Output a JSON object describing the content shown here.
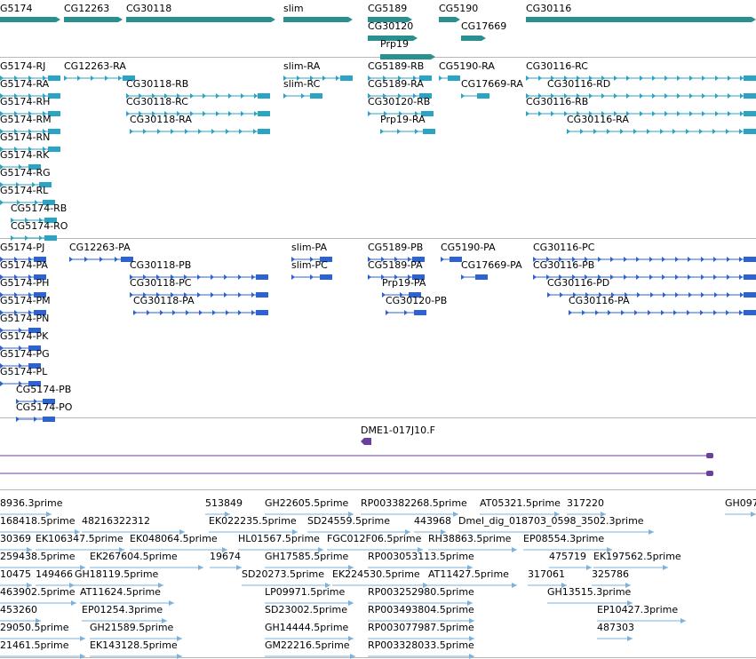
{
  "colors": {
    "gene": "#2a8f8f",
    "transcript": "#2ba3c3",
    "cds": "#2d62d4",
    "est_clone": "#6b3f9e",
    "est": "#7db2dd",
    "separator": "#b8b8b8"
  },
  "tracks": {
    "gene_span": {
      "color_key": "gene",
      "features": [
        {
          "label": "G5174"
        },
        {
          "label": "CG12263"
        },
        {
          "label": "CG30118"
        },
        {
          "label": "slim"
        },
        {
          "label": "CG5189"
        },
        {
          "label": "CG5190"
        },
        {
          "label": "CG30116"
        },
        {
          "label": "CG30120"
        },
        {
          "label": "CG17669"
        },
        {
          "label": "Prp19"
        }
      ]
    },
    "mrna": {
      "color_key": "transcript",
      "features": [
        {
          "label": "G5174-RJ"
        },
        {
          "label": "CG12263-RA"
        },
        {
          "label": "slim-RA"
        },
        {
          "label": "CG5189-RB"
        },
        {
          "label": "CG5190-RA"
        },
        {
          "label": "CG30116-RC"
        },
        {
          "label": "G5174-RA"
        },
        {
          "label": "CG30118-RB"
        },
        {
          "label": "slim-RC"
        },
        {
          "label": "CG5189-RA"
        },
        {
          "label": "CG17669-RA"
        },
        {
          "label": "CG30116-RD"
        },
        {
          "label": "G5174-RH"
        },
        {
          "label": "CG30118-RC"
        },
        {
          "label": "CG30120-RB"
        },
        {
          "label": "CG30116-RB"
        },
        {
          "label": "G5174-RM"
        },
        {
          "label": "CG30118-RA"
        },
        {
          "label": "Prp19-RA"
        },
        {
          "label": "CG30116-RA"
        },
        {
          "label": "G5174-RN"
        },
        {
          "label": "G5174-RK"
        },
        {
          "label": "G5174-RG"
        },
        {
          "label": "G5174-RL"
        },
        {
          "label": "CG5174-RB"
        },
        {
          "label": "CG5174-RO"
        }
      ]
    },
    "cds": {
      "color_key": "cds",
      "features": [
        {
          "label": "G5174-PJ"
        },
        {
          "label": "CG12263-PA"
        },
        {
          "label": "slim-PA"
        },
        {
          "label": "CG5189-PB"
        },
        {
          "label": "CG5190-PA"
        },
        {
          "label": "CG30116-PC"
        },
        {
          "label": "G5174-PA"
        },
        {
          "label": "CG30118-PB"
        },
        {
          "label": "slim-PC"
        },
        {
          "label": "CG5189-PA"
        },
        {
          "label": "CG17669-PA"
        },
        {
          "label": "CG30116-PB"
        },
        {
          "label": "G5174-PH"
        },
        {
          "label": "CG30118-PC"
        },
        {
          "label": "Prp19-PA"
        },
        {
          "label": "CG30116-PD"
        },
        {
          "label": "G5174-PM"
        },
        {
          "label": "CG30118-PA"
        },
        {
          "label": "CG30120-PB"
        },
        {
          "label": "CG30116-PA"
        },
        {
          "label": "G5174-PN"
        },
        {
          "label": "G5174-PK"
        },
        {
          "label": "G5174-PG"
        },
        {
          "label": "G5174-PL"
        },
        {
          "label": "CG5174-PB"
        },
        {
          "label": "CG5174-PO"
        }
      ]
    },
    "clone": {
      "color_key": "est_clone",
      "features": [
        {
          "label": "DME1-017J10.F"
        }
      ]
    },
    "est": {
      "color_key": "est",
      "features": [
        {
          "label": "8936.3prime"
        },
        {
          "label": "513849"
        },
        {
          "label": "GH22605.5prime"
        },
        {
          "label": "RP003382268.5prime"
        },
        {
          "label": "AT05321.5prime"
        },
        {
          "label": "317220"
        },
        {
          "label": "GH097"
        },
        {
          "label": "168418.5prime"
        },
        {
          "label": "48216322312"
        },
        {
          "label": "EK022235.5prime"
        },
        {
          "label": "SD24559.5prime"
        },
        {
          "label": "443968"
        },
        {
          "label": "Dmel_dig_018703_0598_3502.3prime"
        },
        {
          "label": "30369"
        },
        {
          "label": "EK106347.5prime"
        },
        {
          "label": "EK048064.5prime"
        },
        {
          "label": "HL01567.5prime"
        },
        {
          "label": "FGC012F06.5prime"
        },
        {
          "label": "RH38863.5prime"
        },
        {
          "label": "EP08554.3prime"
        },
        {
          "label": "259438.5prime"
        },
        {
          "label": "EK267604.5prime"
        },
        {
          "label": "19674"
        },
        {
          "label": "GH17585.5prime"
        },
        {
          "label": "RP003053113.5prime"
        },
        {
          "label": "475719"
        },
        {
          "label": "EK197562.5prime"
        },
        {
          "label": "10475"
        },
        {
          "label": "149466"
        },
        {
          "label": "GH18119.5prime"
        },
        {
          "label": "SD20273.5prime"
        },
        {
          "label": "EK224530.5prime"
        },
        {
          "label": "AT11427.5prime"
        },
        {
          "label": "317061"
        },
        {
          "label": "325786"
        },
        {
          "label": "463902.5prime"
        },
        {
          "label": "AT11624.5prime"
        },
        {
          "label": "LP09971.5prime"
        },
        {
          "label": "RP003252980.5prime"
        },
        {
          "label": "GH13515.3prime"
        },
        {
          "label": "453260"
        },
        {
          "label": "EP01254.3prime"
        },
        {
          "label": "SD23002.5prime"
        },
        {
          "label": "RP003493804.5prime"
        },
        {
          "label": "EP10427.3prime"
        },
        {
          "label": "29050.5prime"
        },
        {
          "label": "GH21589.5prime"
        },
        {
          "label": "GH14444.5prime"
        },
        {
          "label": "RP003077987.5prime"
        },
        {
          "label": "487303"
        },
        {
          "label": "21461.5prime"
        },
        {
          "label": "EK143128.5prime"
        },
        {
          "label": "GM22216.5prime"
        },
        {
          "label": "RP003328033.5prime"
        }
      ]
    }
  }
}
